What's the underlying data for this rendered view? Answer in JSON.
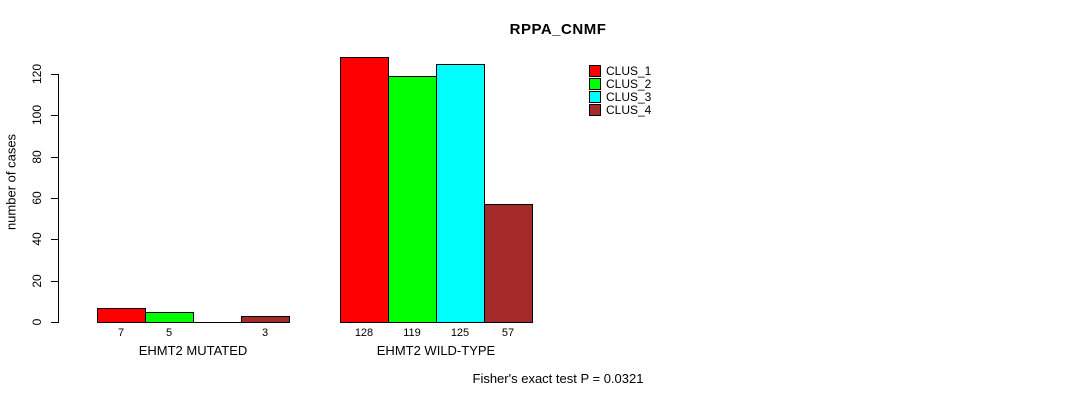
{
  "chart_data": {
    "type": "bar",
    "title": "RPPA_CNMF",
    "ylabel": "number of cases",
    "xlabel": "",
    "categories": [
      "EHMT2 MUTATED",
      "EHMT2 WILD-TYPE"
    ],
    "series": [
      {
        "name": "CLUS_1",
        "color": "#FF0000",
        "values": [
          7,
          128
        ]
      },
      {
        "name": "CLUS_2",
        "color": "#00FF00",
        "values": [
          5,
          119
        ]
      },
      {
        "name": "CLUS_3",
        "color": "#00FFFF",
        "values": [
          0,
          125
        ]
      },
      {
        "name": "CLUS_4",
        "color": "#A52A2A",
        "values": [
          3,
          57
        ]
      }
    ],
    "bar_value_labels_shown_when": "value greater than 0",
    "yticks": [
      0,
      20,
      40,
      60,
      80,
      100,
      120
    ],
    "ylim": [
      0,
      128
    ],
    "grid": false,
    "legend_position": "top-right",
    "annotation": "Fisher's exact test P = 0.0321",
    "background": "#FFFFFF",
    "axis_color": "#000000"
  }
}
